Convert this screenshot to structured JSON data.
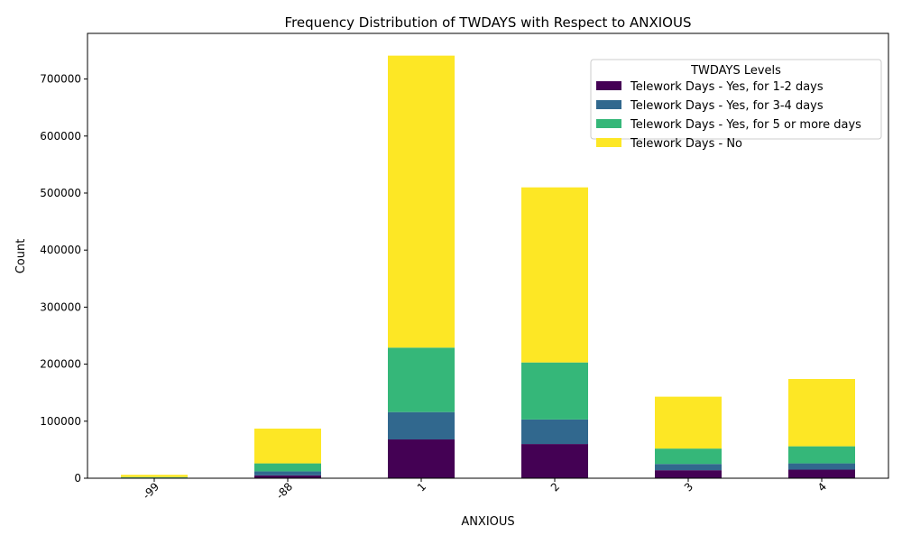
{
  "chart_data": {
    "type": "bar",
    "stacked": true,
    "title": "Frequency Distribution of TWDAYS with Respect to ANXIOUS",
    "xlabel": "ANXIOUS",
    "ylabel": "Count",
    "categories": [
      "-99",
      "-88",
      "1",
      "2",
      "3",
      "4"
    ],
    "ylim": [
      0,
      780000
    ],
    "yticks": [
      0,
      100000,
      200000,
      300000,
      400000,
      500000,
      600000,
      700000
    ],
    "ytick_labels": [
      "0",
      "100000",
      "200000",
      "300000",
      "400000",
      "500000",
      "600000",
      "700000"
    ],
    "grid": false,
    "legend": {
      "title": "TWDAYS Levels",
      "placement": "top-right"
    },
    "series": [
      {
        "name": "Telework Days - Yes, for 1-2 days",
        "color": "#440154",
        "values": [
          500,
          5000,
          68000,
          60000,
          14000,
          15000
        ]
      },
      {
        "name": "Telework Days - Yes, for 3-4 days",
        "color": "#31688e",
        "values": [
          500,
          7000,
          48000,
          43000,
          11000,
          11000
        ]
      },
      {
        "name": "Telework Days - Yes, for 5 or more days",
        "color": "#35b779",
        "values": [
          1000,
          14000,
          113000,
          100000,
          27000,
          30000
        ]
      },
      {
        "name": "Telework Days - No",
        "color": "#fde725",
        "values": [
          4000,
          61000,
          512000,
          307000,
          91000,
          118000
        ]
      }
    ]
  }
}
